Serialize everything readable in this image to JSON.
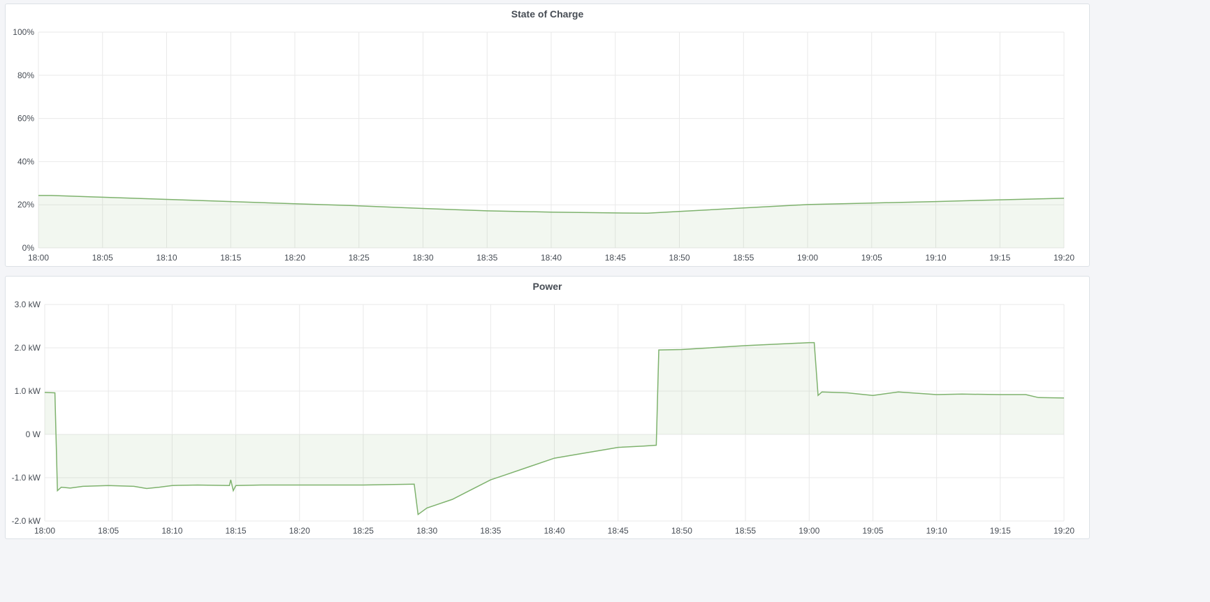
{
  "chart_data": [
    {
      "type": "area",
      "title": "State of Charge",
      "x_ticks": [
        "18:00",
        "18:05",
        "18:10",
        "18:15",
        "18:20",
        "18:25",
        "18:30",
        "18:35",
        "18:40",
        "18:45",
        "18:50",
        "18:55",
        "19:00",
        "19:05",
        "19:10",
        "19:15",
        "19:20"
      ],
      "y_ticks": [
        "0%",
        "20%",
        "40%",
        "60%",
        "80%",
        "100%"
      ],
      "ylim": [
        0,
        100
      ],
      "xlim_minutes_after_18_00": [
        0,
        80
      ],
      "grid": true,
      "color": "#7eb26d",
      "x": [
        0,
        1,
        5,
        10,
        15,
        20,
        25,
        30,
        35,
        40,
        45,
        47.5,
        50,
        55,
        60,
        65,
        70,
        75,
        80
      ],
      "y": [
        24.3,
        24.3,
        23.5,
        22.5,
        21.5,
        20.5,
        19.5,
        18.3,
        17.2,
        16.6,
        16.2,
        16.1,
        16.9,
        18.5,
        20.1,
        20.8,
        21.5,
        22.3,
        23.0
      ]
    },
    {
      "type": "area",
      "title": "Power",
      "x_ticks": [
        "18:00",
        "18:05",
        "18:10",
        "18:15",
        "18:20",
        "18:25",
        "18:30",
        "18:35",
        "18:40",
        "18:45",
        "18:50",
        "18:55",
        "19:00",
        "19:05",
        "19:10",
        "19:15",
        "19:20"
      ],
      "y_ticks": [
        "-2.0 kW",
        "-1.0 kW",
        "0 W",
        "1.0 kW",
        "2.0 kW",
        "3.0 kW"
      ],
      "ylim": [
        -2,
        3
      ],
      "unit": "kW",
      "grid": true,
      "color": "#7eb26d",
      "x": [
        0,
        0.8,
        1.0,
        1.3,
        2,
        3,
        5,
        7,
        8,
        9,
        10,
        12,
        14.5,
        14.6,
        14.8,
        15,
        17,
        20,
        25,
        29,
        29.3,
        30,
        31,
        32,
        33,
        35,
        36,
        38,
        40,
        41,
        42,
        44,
        45,
        47,
        48,
        48.2,
        50,
        55,
        60,
        60.4,
        60.7,
        61,
        63,
        65,
        67,
        70,
        72,
        75,
        77,
        78,
        80
      ],
      "y": [
        0.97,
        0.96,
        -1.3,
        -1.22,
        -1.24,
        -1.2,
        -1.18,
        -1.2,
        -1.25,
        -1.22,
        -1.18,
        -1.17,
        -1.18,
        -1.05,
        -1.3,
        -1.18,
        -1.17,
        -1.17,
        -1.17,
        -1.15,
        -1.85,
        -1.7,
        -1.6,
        -1.5,
        -1.35,
        -1.05,
        -0.95,
        -0.75,
        -0.55,
        -0.5,
        -0.45,
        -0.35,
        -0.3,
        -0.27,
        -0.25,
        1.95,
        1.96,
        2.05,
        2.12,
        2.12,
        0.9,
        0.98,
        0.96,
        0.9,
        0.98,
        0.92,
        0.93,
        0.92,
        0.92,
        0.85,
        0.84
      ]
    }
  ]
}
